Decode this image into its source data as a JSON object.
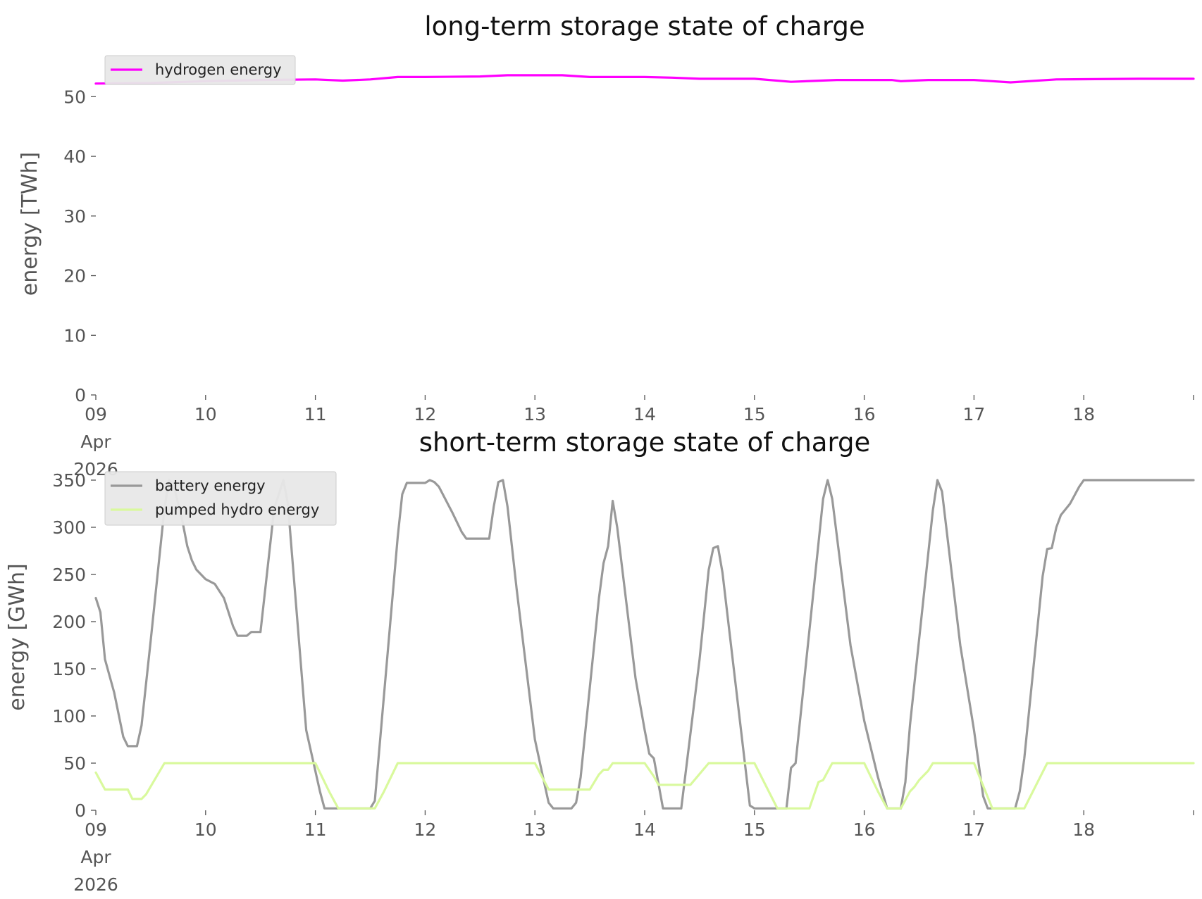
{
  "chart_data": [
    {
      "type": "line",
      "title": "long-term storage state of charge",
      "ylabel": "energy [TWh]",
      "xlabel": "",
      "ylim": [
        0,
        55
      ],
      "yticks": [
        0,
        10,
        20,
        30,
        40,
        50
      ],
      "xlim": [
        "2026-04-09 00:00",
        "2026-04-19 00:00"
      ],
      "xticks": [
        {
          "at": "2026-04-09",
          "label": "09",
          "sub": [
            "Apr",
            "2026"
          ]
        },
        {
          "at": "2026-04-10",
          "label": "10"
        },
        {
          "at": "2026-04-11",
          "label": "11"
        },
        {
          "at": "2026-04-12",
          "label": "12"
        },
        {
          "at": "2026-04-13",
          "label": "13"
        },
        {
          "at": "2026-04-14",
          "label": "14"
        },
        {
          "at": "2026-04-15",
          "label": "15"
        },
        {
          "at": "2026-04-16",
          "label": "16"
        },
        {
          "at": "2026-04-17",
          "label": "17"
        },
        {
          "at": "2026-04-18",
          "label": "18"
        }
      ],
      "grid": false,
      "legend": "top-left",
      "series": [
        {
          "name": "hydrogen energy",
          "color": "#ff00ff",
          "points": [
            [
              "2026-04-09 00:00",
              52.2
            ],
            [
              "2026-04-09 12:00",
              52.3
            ],
            [
              "2026-04-10 00:00",
              52.6
            ],
            [
              "2026-04-10 12:00",
              52.8
            ],
            [
              "2026-04-11 00:00",
              52.9
            ],
            [
              "2026-04-11 06:00",
              52.7
            ],
            [
              "2026-04-11 12:00",
              52.9
            ],
            [
              "2026-04-11 18:00",
              53.3
            ],
            [
              "2026-04-12 00:00",
              53.3
            ],
            [
              "2026-04-12 12:00",
              53.4
            ],
            [
              "2026-04-12 18:00",
              53.6
            ],
            [
              "2026-04-13 06:00",
              53.6
            ],
            [
              "2026-04-13 12:00",
              53.3
            ],
            [
              "2026-04-14 00:00",
              53.3
            ],
            [
              "2026-04-14 06:00",
              53.2
            ],
            [
              "2026-04-14 12:00",
              53.0
            ],
            [
              "2026-04-15 00:00",
              53.0
            ],
            [
              "2026-04-15 08:00",
              52.5
            ],
            [
              "2026-04-15 18:00",
              52.8
            ],
            [
              "2026-04-16 06:00",
              52.8
            ],
            [
              "2026-04-16 08:00",
              52.6
            ],
            [
              "2026-04-16 14:00",
              52.8
            ],
            [
              "2026-04-17 00:00",
              52.8
            ],
            [
              "2026-04-17 08:00",
              52.4
            ],
            [
              "2026-04-17 18:00",
              52.9
            ],
            [
              "2026-04-18 12:00",
              53.0
            ],
            [
              "2026-04-19 00:00",
              53.0
            ]
          ]
        }
      ]
    },
    {
      "type": "line",
      "title": "short-term storage state of charge",
      "ylabel": "energy [GWh]",
      "xlabel": "",
      "ylim": [
        0,
        350
      ],
      "yticks": [
        0,
        50,
        100,
        150,
        200,
        250,
        300,
        350
      ],
      "xlim": [
        "2026-04-09 00:00",
        "2026-04-19 00:00"
      ],
      "xticks": [
        {
          "at": "2026-04-09",
          "label": "09",
          "sub": [
            "Apr",
            "2026"
          ]
        },
        {
          "at": "2026-04-10",
          "label": "10"
        },
        {
          "at": "2026-04-11",
          "label": "11"
        },
        {
          "at": "2026-04-12",
          "label": "12"
        },
        {
          "at": "2026-04-13",
          "label": "13"
        },
        {
          "at": "2026-04-14",
          "label": "14"
        },
        {
          "at": "2026-04-15",
          "label": "15"
        },
        {
          "at": "2026-04-16",
          "label": "16"
        },
        {
          "at": "2026-04-17",
          "label": "17"
        },
        {
          "at": "2026-04-18",
          "label": "18"
        }
      ],
      "grid": false,
      "legend": "top-left",
      "series": [
        {
          "name": "battery energy",
          "color": "#999999",
          "points": [
            [
              "2026-04-09 00:00",
              225
            ],
            [
              "2026-04-09 01:00",
              210
            ],
            [
              "2026-04-09 02:00",
              160
            ],
            [
              "2026-04-09 04:00",
              125
            ],
            [
              "2026-04-09 06:00",
              78
            ],
            [
              "2026-04-09 07:00",
              68
            ],
            [
              "2026-04-09 09:00",
              68
            ],
            [
              "2026-04-09 10:00",
              90
            ],
            [
              "2026-04-09 12:00",
              180
            ],
            [
              "2026-04-09 15:00",
              320
            ],
            [
              "2026-04-09 16:00",
              350
            ],
            [
              "2026-04-09 17:00",
              345
            ],
            [
              "2026-04-09 19:00",
              305
            ],
            [
              "2026-04-09 20:00",
              280
            ],
            [
              "2026-04-09 21:00",
              265
            ],
            [
              "2026-04-09 22:00",
              255
            ],
            [
              "2026-04-10 00:00",
              245
            ],
            [
              "2026-04-10 02:00",
              240
            ],
            [
              "2026-04-10 04:00",
              225
            ],
            [
              "2026-04-10 06:00",
              195
            ],
            [
              "2026-04-10 07:00",
              185
            ],
            [
              "2026-04-10 09:00",
              185
            ],
            [
              "2026-04-10 10:00",
              189
            ],
            [
              "2026-04-10 12:00",
              189
            ],
            [
              "2026-04-10 15:00",
              320
            ],
            [
              "2026-04-10 17:00",
              350
            ],
            [
              "2026-04-10 18:00",
              325
            ],
            [
              "2026-04-10 22:00",
              85
            ],
            [
              "2026-04-11 01:00",
              20
            ],
            [
              "2026-04-11 02:00",
              2
            ],
            [
              "2026-04-11 12:00",
              2
            ],
            [
              "2026-04-11 13:00",
              10
            ],
            [
              "2026-04-11 18:00",
              290
            ],
            [
              "2026-04-11 19:00",
              335
            ],
            [
              "2026-04-11 20:00",
              347
            ],
            [
              "2026-04-12 00:00",
              347
            ],
            [
              "2026-04-12 01:00",
              350
            ],
            [
              "2026-04-12 02:00",
              348
            ],
            [
              "2026-04-12 03:00",
              343
            ],
            [
              "2026-04-12 06:00",
              315
            ],
            [
              "2026-04-12 08:00",
              295
            ],
            [
              "2026-04-12 09:00",
              288
            ],
            [
              "2026-04-12 14:00",
              288
            ],
            [
              "2026-04-12 15:00",
              322
            ],
            [
              "2026-04-12 16:00",
              348
            ],
            [
              "2026-04-12 17:00",
              350
            ],
            [
              "2026-04-12 18:00",
              322
            ],
            [
              "2026-04-12 20:00",
              235
            ],
            [
              "2026-04-13 00:00",
              75
            ],
            [
              "2026-04-13 02:00",
              30
            ],
            [
              "2026-04-13 03:00",
              8
            ],
            [
              "2026-04-13 04:00",
              2
            ],
            [
              "2026-04-13 08:00",
              2
            ],
            [
              "2026-04-13 09:00",
              8
            ],
            [
              "2026-04-13 10:00",
              35
            ],
            [
              "2026-04-13 14:00",
              225
            ],
            [
              "2026-04-13 15:00",
              262
            ],
            [
              "2026-04-13 16:00",
              280
            ],
            [
              "2026-04-13 17:00",
              328
            ],
            [
              "2026-04-13 18:00",
              300
            ],
            [
              "2026-04-13 22:00",
              140
            ],
            [
              "2026-04-14 00:00",
              85
            ],
            [
              "2026-04-14 01:00",
              60
            ],
            [
              "2026-04-14 02:00",
              55
            ],
            [
              "2026-04-14 04:00",
              2
            ],
            [
              "2026-04-14 08:00",
              2
            ],
            [
              "2026-04-14 12:00",
              160
            ],
            [
              "2026-04-14 14:00",
              255
            ],
            [
              "2026-04-14 15:00",
              278
            ],
            [
              "2026-04-14 16:00",
              280
            ],
            [
              "2026-04-14 17:00",
              252
            ],
            [
              "2026-04-14 23:00",
              5
            ],
            [
              "2026-04-15 00:00",
              2
            ],
            [
              "2026-04-15 06:00",
              2
            ],
            [
              "2026-04-15 07:00",
              2
            ],
            [
              "2026-04-15 08:00",
              45
            ],
            [
              "2026-04-15 09:00",
              50
            ],
            [
              "2026-04-15 15:00",
              330
            ],
            [
              "2026-04-15 16:00",
              350
            ],
            [
              "2026-04-15 17:00",
              330
            ],
            [
              "2026-04-15 21:00",
              175
            ],
            [
              "2026-04-16 00:00",
              95
            ],
            [
              "2026-04-16 03:00",
              35
            ],
            [
              "2026-04-16 05:00",
              2
            ],
            [
              "2026-04-16 07:00",
              2
            ],
            [
              "2026-04-16 08:00",
              2
            ],
            [
              "2026-04-16 09:00",
              30
            ],
            [
              "2026-04-16 10:00",
              90
            ],
            [
              "2026-04-16 15:00",
              318
            ],
            [
              "2026-04-16 16:00",
              350
            ],
            [
              "2026-04-16 17:00",
              338
            ],
            [
              "2026-04-16 21:00",
              175
            ],
            [
              "2026-04-17 00:00",
              85
            ],
            [
              "2026-04-17 02:00",
              15
            ],
            [
              "2026-04-17 03:00",
              2
            ],
            [
              "2026-04-17 09:00",
              2
            ],
            [
              "2026-04-17 10:00",
              20
            ],
            [
              "2026-04-17 11:00",
              55
            ],
            [
              "2026-04-17 15:00",
              248
            ],
            [
              "2026-04-17 16:00",
              277
            ],
            [
              "2026-04-17 17:00",
              278
            ],
            [
              "2026-04-17 18:00",
              300
            ],
            [
              "2026-04-17 19:00",
              313
            ],
            [
              "2026-04-17 21:00",
              325
            ],
            [
              "2026-04-17 23:00",
              343
            ],
            [
              "2026-04-18 00:00",
              350
            ],
            [
              "2026-04-19 00:00",
              350
            ]
          ]
        },
        {
          "name": "pumped hydro energy",
          "color": "#d9f99d",
          "points": [
            [
              "2026-04-09 00:00",
              40
            ],
            [
              "2026-04-09 02:00",
              22
            ],
            [
              "2026-04-09 07:00",
              22
            ],
            [
              "2026-04-09 08:00",
              12
            ],
            [
              "2026-04-09 10:00",
              12
            ],
            [
              "2026-04-09 11:00",
              17
            ],
            [
              "2026-04-09 15:00",
              50
            ],
            [
              "2026-04-11 00:00",
              50
            ],
            [
              "2026-04-11 03:00",
              20
            ],
            [
              "2026-04-11 05:00",
              2
            ],
            [
              "2026-04-11 13:00",
              2
            ],
            [
              "2026-04-11 15:00",
              20
            ],
            [
              "2026-04-11 18:00",
              50
            ],
            [
              "2026-04-13 00:00",
              50
            ],
            [
              "2026-04-13 03:00",
              22
            ],
            [
              "2026-04-13 12:00",
              22
            ],
            [
              "2026-04-13 14:00",
              38
            ],
            [
              "2026-04-13 15:00",
              43
            ],
            [
              "2026-04-13 16:00",
              43
            ],
            [
              "2026-04-13 17:00",
              50
            ],
            [
              "2026-04-14 00:00",
              50
            ],
            [
              "2026-04-14 02:00",
              36
            ],
            [
              "2026-04-14 03:00",
              27
            ],
            [
              "2026-04-14 10:00",
              27
            ],
            [
              "2026-04-14 14:00",
              50
            ],
            [
              "2026-04-14 20:00",
              50
            ],
            [
              "2026-04-15 00:00",
              50
            ],
            [
              "2026-04-15 05:00",
              2
            ],
            [
              "2026-04-15 12:00",
              2
            ],
            [
              "2026-04-15 14:00",
              30
            ],
            [
              "2026-04-15 15:00",
              32
            ],
            [
              "2026-04-15 17:00",
              50
            ],
            [
              "2026-04-16 00:00",
              50
            ],
            [
              "2026-04-16 03:00",
              20
            ],
            [
              "2026-04-16 05:00",
              2
            ],
            [
              "2026-04-16 08:00",
              2
            ],
            [
              "2026-04-16 10:00",
              20
            ],
            [
              "2026-04-16 11:00",
              25
            ],
            [
              "2026-04-16 12:00",
              32
            ],
            [
              "2026-04-16 14:00",
              42
            ],
            [
              "2026-04-16 15:00",
              50
            ],
            [
              "2026-04-17 00:00",
              50
            ],
            [
              "2026-04-17 04:00",
              2
            ],
            [
              "2026-04-17 11:00",
              2
            ],
            [
              "2026-04-17 16:00",
              50
            ],
            [
              "2026-04-19 00:00",
              50
            ]
          ]
        }
      ]
    }
  ]
}
